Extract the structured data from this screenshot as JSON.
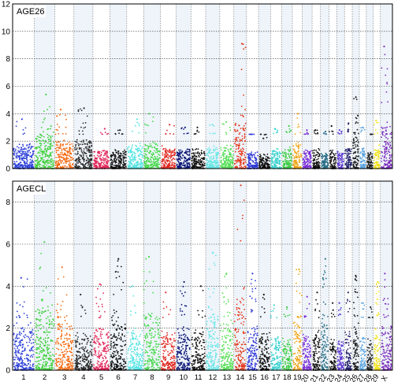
{
  "chart_data": [
    {
      "type": "scatter",
      "title": "AGE26",
      "xlabel": "",
      "ylabel": "",
      "ylim": [
        0,
        12
      ],
      "y_ticks": [
        0,
        2,
        4,
        6,
        8,
        10,
        12
      ],
      "grid": true,
      "note_on_values": "Manhattan plot; per-chromosome peak -log10(p) values estimated from gridlines",
      "chromosomes": [
        "1",
        "2",
        "3",
        "4",
        "5",
        "6",
        "7",
        "8",
        "9",
        "10",
        "11",
        "12",
        "13",
        "14",
        "15",
        "16",
        "17",
        "18",
        "19",
        "20",
        "21",
        "22",
        "23",
        "24",
        "25",
        "26",
        "27",
        "28",
        "29",
        "X"
      ],
      "series_values": [
        3.6,
        5.4,
        4.3,
        4.4,
        2.9,
        2.8,
        3.6,
        4.0,
        3.2,
        3.0,
        3.0,
        3.2,
        3.4,
        9.1,
        2.5,
        2.2,
        2.9,
        3.1,
        4.0,
        2.8,
        2.8,
        2.7,
        3.1,
        2.8,
        3.3,
        5.2,
        3.0,
        2.5,
        3.5,
        8.9
      ]
    },
    {
      "type": "scatter",
      "title": "AGECL",
      "xlabel": "",
      "ylabel": "",
      "ylim": [
        0,
        9
      ],
      "y_ticks": [
        0,
        2,
        4,
        6,
        8
      ],
      "grid": true,
      "note_on_values": "Manhattan plot; per-chromosome peak -log10(p) values estimated from gridlines",
      "chromosomes": [
        "1",
        "2",
        "3",
        "4",
        "5",
        "6",
        "7",
        "8",
        "9",
        "10",
        "11",
        "12",
        "13",
        "14",
        "15",
        "16",
        "17",
        "18",
        "19",
        "20",
        "21",
        "22",
        "23",
        "24",
        "25",
        "26",
        "27",
        "28",
        "29",
        "X"
      ],
      "series_values": [
        4.4,
        6.1,
        4.9,
        3.6,
        4.1,
        5.3,
        4.0,
        5.4,
        3.7,
        4.2,
        4.0,
        5.6,
        4.6,
        8.8,
        4.6,
        3.6,
        3.1,
        3.0,
        4.8,
        3.5,
        3.7,
        5.3,
        3.2,
        3.2,
        3.7,
        4.5,
        3.2,
        3.0,
        4.2,
        4.6
      ]
    }
  ],
  "colors": [
    "#2b3fd8",
    "#3fd13a",
    "#f56a12",
    "#2a2a2a",
    "#e0285a",
    "#111111",
    "#55e3e3",
    "#47d94c",
    "#e02820",
    "#0d1677",
    "#111111",
    "#68e6e6",
    "#57df57",
    "#e6371a",
    "#2d39d4",
    "#111111",
    "#3bd2d0",
    "#3fcd45",
    "#f0a417",
    "#7b2dd6",
    "#0d0d0d",
    "#2b6f86",
    "#171717",
    "#5b35cf",
    "#1f1f6b",
    "#1a1a1a",
    "#5ba5e2",
    "#222222",
    "#f2e21c",
    "#7b2bb8"
  ]
}
